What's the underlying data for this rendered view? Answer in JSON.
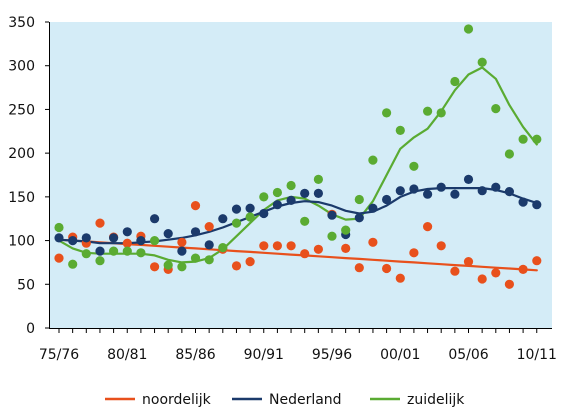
{
  "chart_data": {
    "type": "line",
    "title": "",
    "xlabel": "",
    "ylabel": "",
    "ylim": [
      0,
      350
    ],
    "yticks": [
      0,
      50,
      100,
      150,
      200,
      250,
      300,
      350
    ],
    "x_tick_labels": [
      "75/76",
      "80/81",
      "85/86",
      "90/91",
      "95/96",
      "00/01",
      "05/06",
      "10/11"
    ],
    "seasons": [
      "75/76",
      "76/77",
      "77/78",
      "78/79",
      "79/80",
      "80/81",
      "81/82",
      "82/83",
      "83/84",
      "84/85",
      "85/86",
      "86/87",
      "87/88",
      "88/89",
      "89/90",
      "90/91",
      "91/92",
      "92/93",
      "93/94",
      "94/95",
      "95/96",
      "96/97",
      "97/98",
      "98/99",
      "99/00",
      "00/01",
      "01/02",
      "02/03",
      "03/04",
      "04/05",
      "05/06",
      "06/07",
      "07/08",
      "08/09",
      "09/10",
      "10/11"
    ],
    "grid": false,
    "legend_position": "bottom",
    "series": [
      {
        "name": "noordelijk",
        "color": "#e8501c",
        "points": [
          80,
          104,
          97,
          120,
          104,
          97,
          105,
          70,
          67,
          98,
          140,
          116,
          90,
          71,
          76,
          94,
          94,
          94,
          85,
          90,
          130,
          91,
          69,
          98,
          68,
          57,
          86,
          116,
          94,
          65,
          76,
          56,
          63,
          50,
          67,
          77
        ],
        "trend": [
          101,
          100,
          99,
          98,
          97,
          96,
          95,
          94,
          93,
          92,
          91,
          90,
          89,
          88,
          87,
          86,
          85,
          84,
          83,
          82,
          81,
          80,
          79,
          78,
          77,
          76,
          75,
          74,
          73,
          72,
          71,
          70,
          69,
          68,
          67,
          66
        ]
      },
      {
        "name": "Nederland",
        "color": "#1b3a6b",
        "points": [
          103,
          100,
          103,
          88,
          103,
          110,
          100,
          125,
          108,
          88,
          110,
          95,
          125,
          136,
          137,
          131,
          141,
          146,
          154,
          154,
          129,
          107,
          126,
          137,
          147,
          157,
          159,
          153,
          161,
          153,
          170,
          157,
          161,
          156,
          144,
          141
        ],
        "trend": [
          101,
          100,
          99,
          97,
          97,
          97,
          98,
          99,
          101,
          103,
          106,
          110,
          115,
          121,
          127,
          133,
          139,
          143,
          145,
          144,
          140,
          134,
          131,
          133,
          140,
          150,
          156,
          159,
          160,
          160,
          160,
          160,
          158,
          154,
          148,
          143
        ]
      },
      {
        "name": "zuidelijk",
        "color": "#5aab32",
        "points": [
          115,
          73,
          85,
          77,
          88,
          88,
          86,
          100,
          72,
          70,
          80,
          78,
          92,
          120,
          127,
          150,
          155,
          163,
          122,
          170,
          105,
          112,
          147,
          192,
          246,
          226,
          185,
          248,
          246,
          282,
          342,
          304,
          251,
          199,
          216,
          216
        ],
        "trend": [
          100,
          91,
          86,
          85,
          85,
          85,
          85,
          83,
          78,
          75,
          76,
          80,
          90,
          105,
          120,
          135,
          146,
          150,
          148,
          140,
          130,
          124,
          125,
          145,
          175,
          205,
          218,
          228,
          248,
          272,
          290,
          298,
          285,
          255,
          230,
          210
        ]
      }
    ]
  }
}
